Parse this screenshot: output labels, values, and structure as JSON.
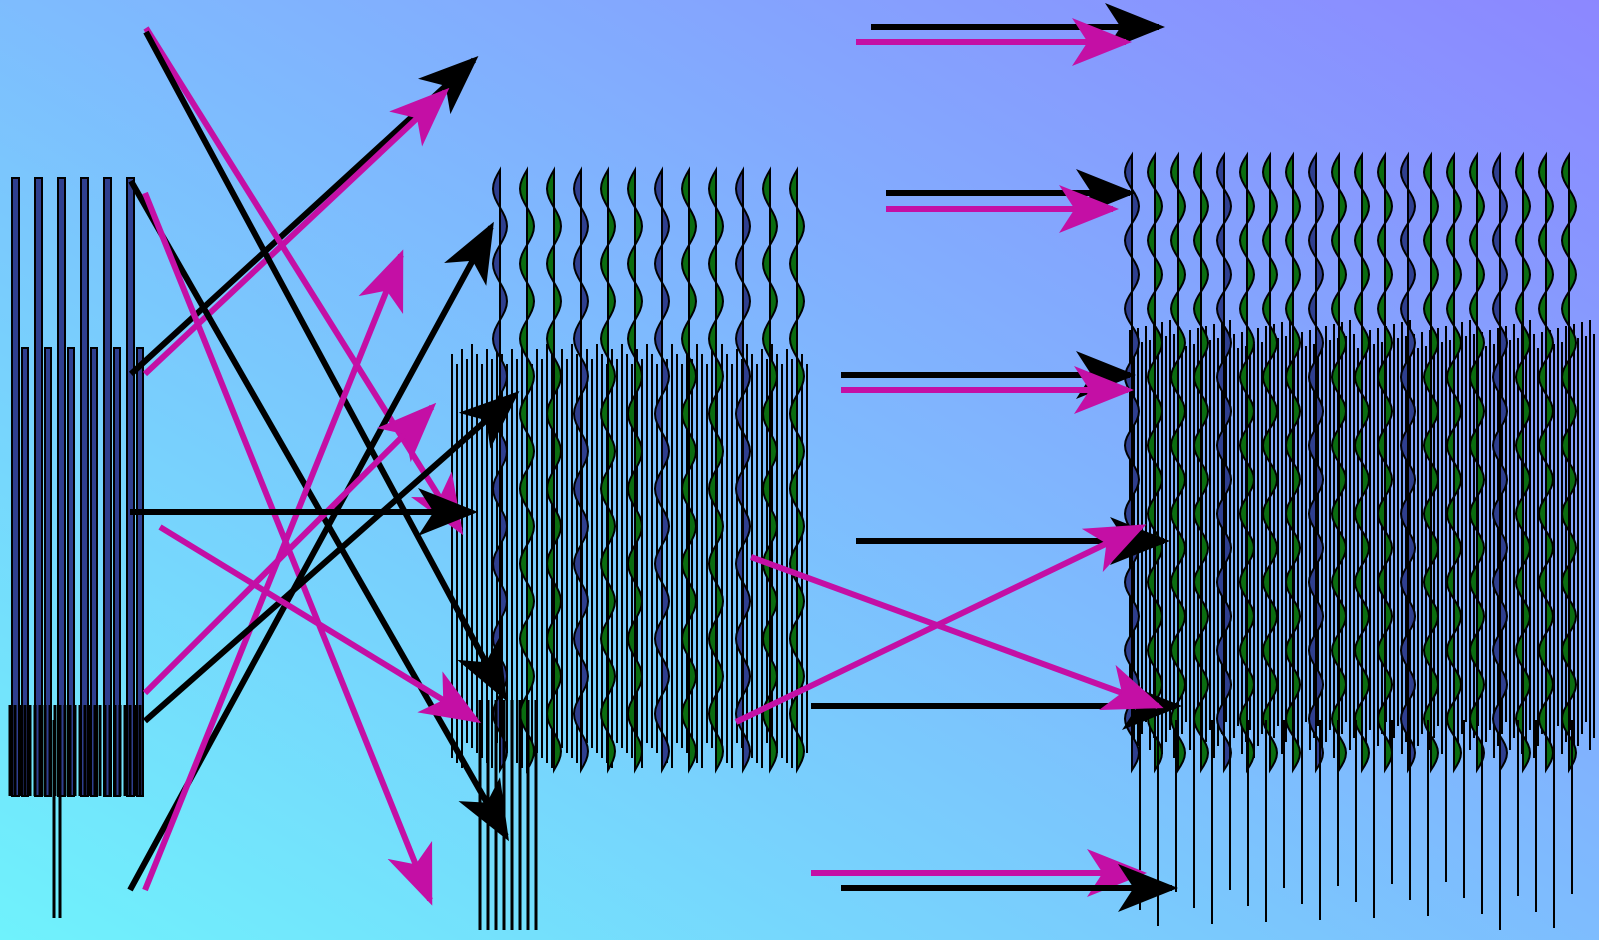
{
  "colors": {
    "background_start": "#6ff2fc",
    "background_end": "#8c87ff",
    "arrow_black": "#000000",
    "arrow_magenta": "#c40fa5",
    "wave_fill_navy": "#2f3f8f",
    "wave_fill_green": "#0b6d10"
  },
  "diagram": {
    "description_visible_text": "",
    "groups": [
      {
        "name": "left-signal-block"
      },
      {
        "name": "middle-signal-block"
      },
      {
        "name": "right-signal-block"
      },
      {
        "name": "crossing-arrow-group"
      },
      {
        "name": "parallel-arrow-group"
      }
    ]
  }
}
